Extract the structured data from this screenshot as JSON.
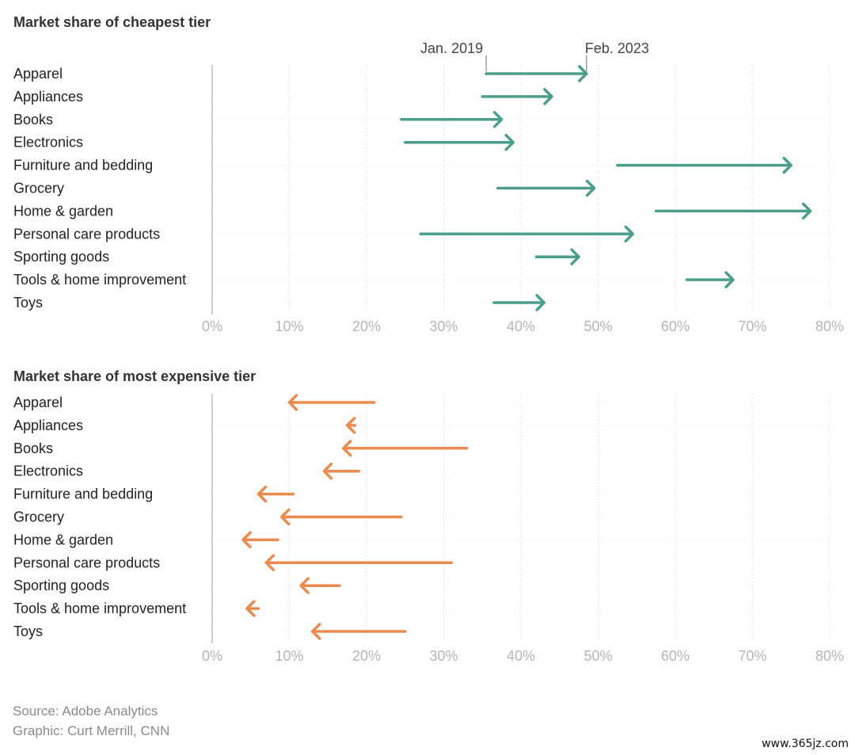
{
  "chart_data": [
    {
      "type": "arrow-range",
      "title": "Market share of cheapest tier",
      "direction": "increase",
      "color": "#4c9e8c",
      "annotations": {
        "start_label": "Jan. 2019",
        "end_label": "Feb. 2023"
      },
      "categories": [
        "Apparel",
        "Appliances",
        "Books",
        "Electronics",
        "Furniture and bedding",
        "Grocery",
        "Home & garden",
        "Personal care products",
        "Sporting goods",
        "Tools & home improvement",
        "Toys"
      ],
      "series": [
        {
          "name": "Jan. 2019",
          "values": [
            35.5,
            35.0,
            24.5,
            25.0,
            52.5,
            37.0,
            57.5,
            27.0,
            42.0,
            61.5,
            36.5
          ]
        },
        {
          "name": "Feb. 2023",
          "values": [
            48.5,
            44.0,
            37.5,
            39.0,
            75.0,
            49.5,
            77.5,
            54.5,
            47.5,
            67.5,
            43.0
          ]
        }
      ],
      "x_ticks": [
        "0%",
        "10%",
        "20%",
        "30%",
        "40%",
        "50%",
        "60%",
        "70%",
        "80%"
      ],
      "xlim": [
        0,
        80
      ],
      "grid": true
    },
    {
      "type": "arrow-range",
      "title": "Market share of most expensive tier",
      "direction": "decrease",
      "color": "#ea8a4e",
      "categories": [
        "Apparel",
        "Appliances",
        "Books",
        "Electronics",
        "Furniture and bedding",
        "Grocery",
        "Home & garden",
        "Personal care products",
        "Sporting goods",
        "Tools & home improvement",
        "Toys"
      ],
      "series": [
        {
          "name": "Jan. 2019",
          "values": [
            21.0,
            18.5,
            33.0,
            19.0,
            10.5,
            24.5,
            8.5,
            31.0,
            16.5,
            6.0,
            25.0
          ]
        },
        {
          "name": "Feb. 2023",
          "values": [
            10.0,
            17.5,
            17.0,
            14.5,
            6.0,
            9.0,
            4.0,
            7.0,
            11.5,
            4.5,
            13.0
          ]
        }
      ],
      "x_ticks": [
        "0%",
        "10%",
        "20%",
        "30%",
        "40%",
        "50%",
        "60%",
        "70%",
        "80%"
      ],
      "xlim": [
        0,
        80
      ],
      "grid": true
    }
  ],
  "footer": {
    "source": "Source: Adobe Analytics",
    "graphic": "Graphic: Curt Merrill, CNN"
  },
  "watermark": "www.365jz.com"
}
